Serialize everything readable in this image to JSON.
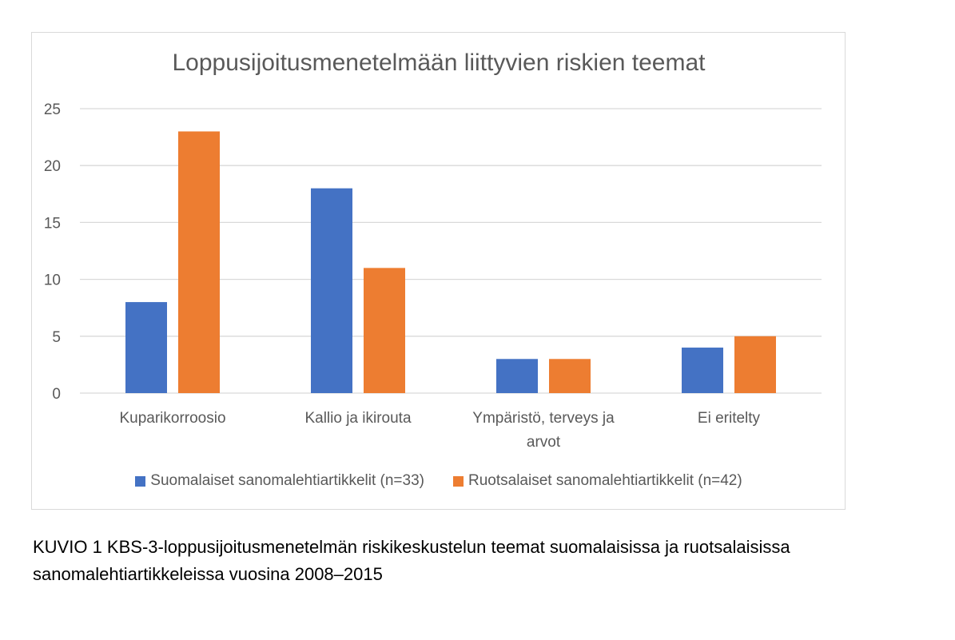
{
  "chart_data": {
    "type": "bar",
    "title": "Loppusijoitusmenetelmään liittyvien riskien teemat",
    "categories": [
      [
        "Kuparikorroosio"
      ],
      [
        "Kallio ja ikirouta"
      ],
      [
        "Ympäristö, terveys ja",
        "arvot"
      ],
      [
        "Ei eritelty"
      ]
    ],
    "series": [
      {
        "name": "Suomalaiset sanomalehtiartikkelit (n=33)",
        "values": [
          8,
          18,
          3,
          4
        ],
        "color": "#4472c4"
      },
      {
        "name": "Ruotsalaiset sanomalehtiartikkelit (n=42)",
        "values": [
          23,
          11,
          3,
          5
        ],
        "color": "#ed7d31"
      }
    ],
    "ylim": [
      0,
      25
    ],
    "yticks": [
      0,
      5,
      10,
      15,
      20,
      25
    ],
    "grid": true,
    "legend_position": "bottom"
  },
  "caption": {
    "line1": "KUVIO 1 KBS-3-loppusijoitusmenetelmän riskikeskustelun teemat suomalaisissa ja ruotsalaisissa",
    "line2": "sanomalehtiartikkeleissa vuosina 2008–2015"
  },
  "colors": {
    "grid": "#d9d9d9",
    "axis_text": "#595959"
  }
}
